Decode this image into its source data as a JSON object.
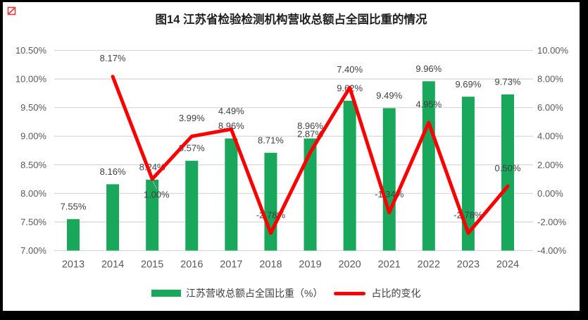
{
  "title": "图14 江苏省检验检测机构营收总额占全国比重的情况",
  "legend": {
    "bar_label": "江苏营收总额占全国比重（%）",
    "line_label": "占比的变化"
  },
  "colors": {
    "bar": "#18A75B",
    "line": "#FB0000",
    "grid": "#D9D9D9",
    "axis_text": "#595959",
    "label_text": "#404040",
    "leader": "#A6A6A6",
    "corner_mark": "#E03A3A"
  },
  "chart_data": {
    "type": "combo-bar-line",
    "categories": [
      "2013",
      "2014",
      "2015",
      "2016",
      "2017",
      "2018",
      "2019",
      "2020",
      "2021",
      "2022",
      "2023",
      "2024"
    ],
    "series": [
      {
        "name": "江苏营收总额占全国比重（%）",
        "type": "bar",
        "axis": "left",
        "values": [
          7.55,
          8.16,
          8.24,
          8.57,
          8.96,
          8.71,
          8.96,
          9.62,
          9.49,
          9.96,
          9.69,
          9.73
        ],
        "labels": [
          "7.55%",
          "8.16%",
          "8.24%",
          "8.57%",
          "8.96%",
          "8.71%",
          "8.96%",
          "9.62%",
          "9.49%",
          "9.96%",
          "9.69%",
          "9.73%"
        ]
      },
      {
        "name": "占比的变化",
        "type": "line",
        "axis": "right",
        "values": [
          null,
          8.17,
          1.0,
          3.99,
          4.49,
          -2.78,
          2.87,
          7.4,
          -1.34,
          4.95,
          -2.78,
          0.5
        ],
        "labels": [
          null,
          "8.17%",
          "1.00%",
          "3.99%",
          "4.49%",
          "-2.78%",
          "2.87%",
          "7.40%",
          "-1.34%",
          "4.95%",
          "-2.78%",
          "0.50%"
        ]
      }
    ],
    "left_axis": {
      "min": 7.0,
      "max": 10.5,
      "step": 0.5,
      "ticks": [
        "10.50%",
        "10.00%",
        "9.50%",
        "9.00%",
        "8.50%",
        "8.00%",
        "7.50%",
        "7.00%"
      ]
    },
    "right_axis": {
      "min": -4.0,
      "max": 10.0,
      "step": 2.0,
      "ticks": [
        "10.00%",
        "8.00%",
        "6.00%",
        "4.00%",
        "2.00%",
        "0.00%",
        "-2.00%",
        "-4.00%"
      ]
    },
    "grid": true,
    "legend_position": "bottom"
  }
}
